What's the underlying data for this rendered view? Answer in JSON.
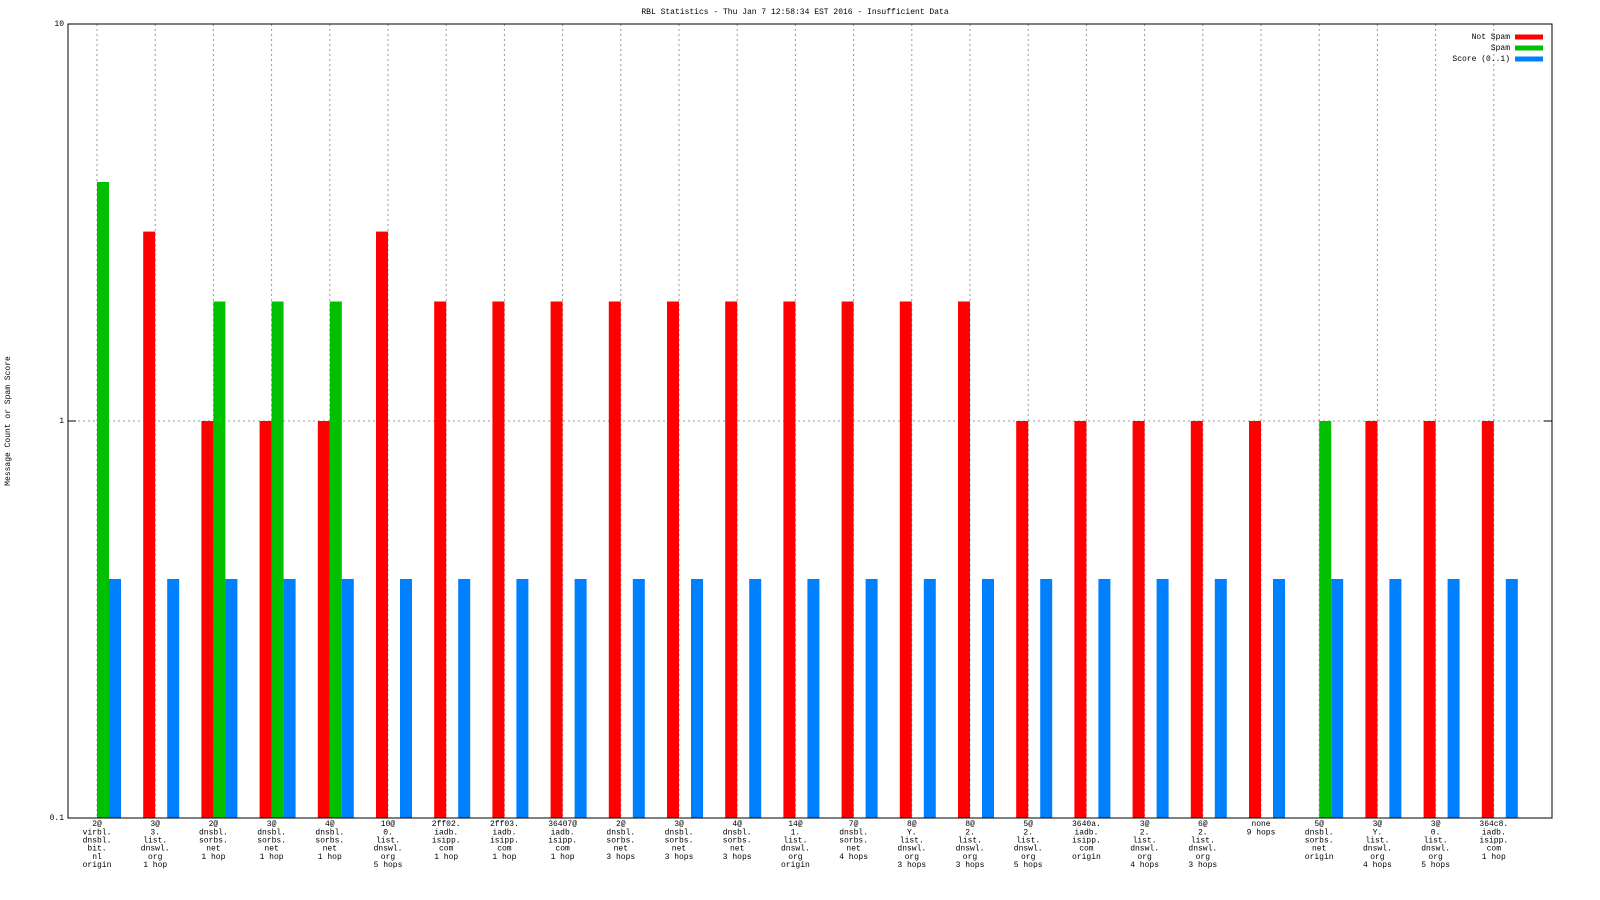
{
  "chart_data": {
    "type": "bar",
    "title": "RBL Statistics - Thu Jan  7 12:58:34 EST 2016 - Insufficient Data",
    "ylabel": "Message Count or Spam Score",
    "log_y": true,
    "ylim": [
      0.1,
      10
    ],
    "yticks": [
      0.1,
      1,
      10
    ],
    "grid": true,
    "legend": "top-right",
    "categories": [
      [
        "2@",
        "virbl.",
        "dnsbl.",
        "bit.",
        "nl",
        "origin"
      ],
      [
        "3@",
        "3.",
        "list.",
        "dnswl.",
        "org",
        "1 hop"
      ],
      [
        "2@",
        "dnsbl.",
        "sorbs.",
        "net",
        "1 hop"
      ],
      [
        "3@",
        "dnsbl.",
        "sorbs.",
        "net",
        "1 hop"
      ],
      [
        "4@",
        "dnsbl.",
        "sorbs.",
        "net",
        "1 hop"
      ],
      [
        "10@",
        "0.",
        "list.",
        "dnswl.",
        "org",
        "5 hops"
      ],
      [
        "2ff02.",
        "iadb.",
        "isipp.",
        "com",
        "1 hop"
      ],
      [
        "2ff03.",
        "iadb.",
        "isipp.",
        "com",
        "1 hop"
      ],
      [
        "36407@",
        "iadb.",
        "isipp.",
        "com",
        "1 hop"
      ],
      [
        "2@",
        "dnsbl.",
        "sorbs.",
        "net",
        "3 hops"
      ],
      [
        "3@",
        "dnsbl.",
        "sorbs.",
        "net",
        "3 hops"
      ],
      [
        "4@",
        "dnsbl.",
        "sorbs.",
        "net",
        "3 hops"
      ],
      [
        "14@",
        "1.",
        "list.",
        "dnswl.",
        "org",
        "origin"
      ],
      [
        "7@",
        "dnsbl.",
        "sorbs.",
        "net",
        "4 hops"
      ],
      [
        "8@",
        "Y.",
        "list.",
        "dnswl.",
        "org",
        "3 hops"
      ],
      [
        "8@",
        "2.",
        "list.",
        "dnswl.",
        "org",
        "3 hops"
      ],
      [
        "5@",
        "2.",
        "list.",
        "dnswl.",
        "org",
        "5 hops"
      ],
      [
        "3640a.",
        "iadb.",
        "isipp.",
        "com",
        "origin"
      ],
      [
        "3@",
        "2.",
        "list.",
        "dnswl.",
        "org",
        "4 hops"
      ],
      [
        "6@",
        "2.",
        "list.",
        "dnswl.",
        "org",
        "3 hops"
      ],
      [
        "none",
        "9 hops"
      ],
      [
        "5@",
        "dnsbl.",
        "sorbs.",
        "net",
        "origin"
      ],
      [
        "3@",
        "Y.",
        "list.",
        "dnswl.",
        "org",
        "4 hops"
      ],
      [
        "3@",
        "0.",
        "list.",
        "dnswl.",
        "org",
        "5 hops"
      ],
      [
        "364c8.",
        "iadb.",
        "isipp.",
        "com",
        "1 hop"
      ]
    ],
    "series": [
      {
        "name": "Not Spam",
        "color": "#ff0000",
        "values": [
          null,
          3,
          1,
          1,
          1,
          3,
          2,
          2,
          2,
          2,
          2,
          2,
          2,
          2,
          2,
          2,
          1,
          1,
          1,
          1,
          1,
          null,
          1,
          1,
          1
        ]
      },
      {
        "name": "Spam",
        "color": "#00c000",
        "values": [
          4,
          null,
          2,
          2,
          2,
          null,
          null,
          null,
          null,
          null,
          null,
          null,
          null,
          null,
          null,
          null,
          null,
          null,
          null,
          null,
          null,
          1,
          null,
          null,
          null
        ]
      },
      {
        "name": "Score (0..1)",
        "color": "#0080ff",
        "values": [
          0.4,
          0.4,
          0.4,
          0.4,
          0.4,
          0.4,
          0.4,
          0.4,
          0.4,
          0.4,
          0.4,
          0.4,
          0.4,
          0.4,
          0.4,
          0.4,
          0.4,
          0.4,
          0.4,
          0.4,
          0.4,
          0.4,
          0.4,
          0.4,
          0.4
        ]
      }
    ]
  }
}
